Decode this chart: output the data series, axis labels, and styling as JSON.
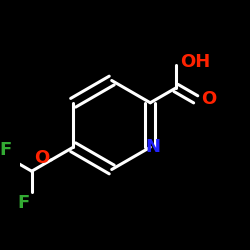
{
  "bg_color": "#000000",
  "bond_color": "#ffffff",
  "N_color": "#2222ff",
  "O_color": "#ff2200",
  "F_color": "#33aa33",
  "bond_width": 2.2,
  "figsize": [
    2.5,
    2.5
  ],
  "dpi": 100,
  "N_label": "N",
  "O_label": "O",
  "F_label": "F",
  "OH_label": "OH",
  "font_size_atom": 13
}
